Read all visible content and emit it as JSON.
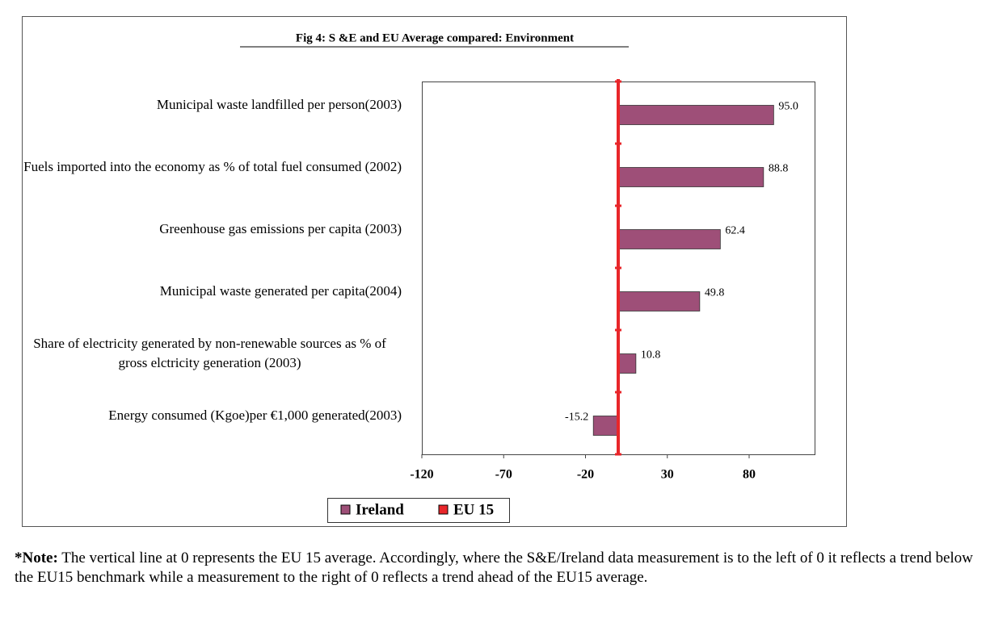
{
  "chart_data": {
    "type": "barh",
    "title": "Fig 4: S &E and EU Average compared: Environment",
    "categories": [
      "Municipal waste landfilled per person(2003)",
      "Fuels imported into the economy as % of total fuel consumed (2002)",
      "Greenhouse gas emissions per capita (2003)",
      "Municipal waste generated per capita(2004)",
      "Share of electricity generated by non-renewable sources as % of gross elctricity generation (2003)",
      "Energy consumed (Kgoe)per €1,000 generated(2003)"
    ],
    "series": [
      {
        "name": "Ireland",
        "color": "#9e4f78",
        "values": [
          95.0,
          88.8,
          62.4,
          49.8,
          10.8,
          -15.2
        ],
        "value_labels": [
          "95.0",
          "88.8",
          "62.4",
          "49.8",
          "10.8",
          "-15.2"
        ]
      }
    ],
    "reference_line": {
      "name": "EU 15",
      "value": 0,
      "color": "#e8262a"
    },
    "xlim": [
      -120,
      120
    ],
    "xticks": [
      -120,
      -70,
      -20,
      30,
      80
    ]
  },
  "note": {
    "label": "*Note:",
    "text": "The vertical line at 0 represents the EU 15 average.  Accordingly, where the S&E/Ireland data measurement is to the left of 0 it reflects a trend below the EU15 benchmark while a measurement to the right of 0 reflects a trend ahead of the EU15 average."
  }
}
